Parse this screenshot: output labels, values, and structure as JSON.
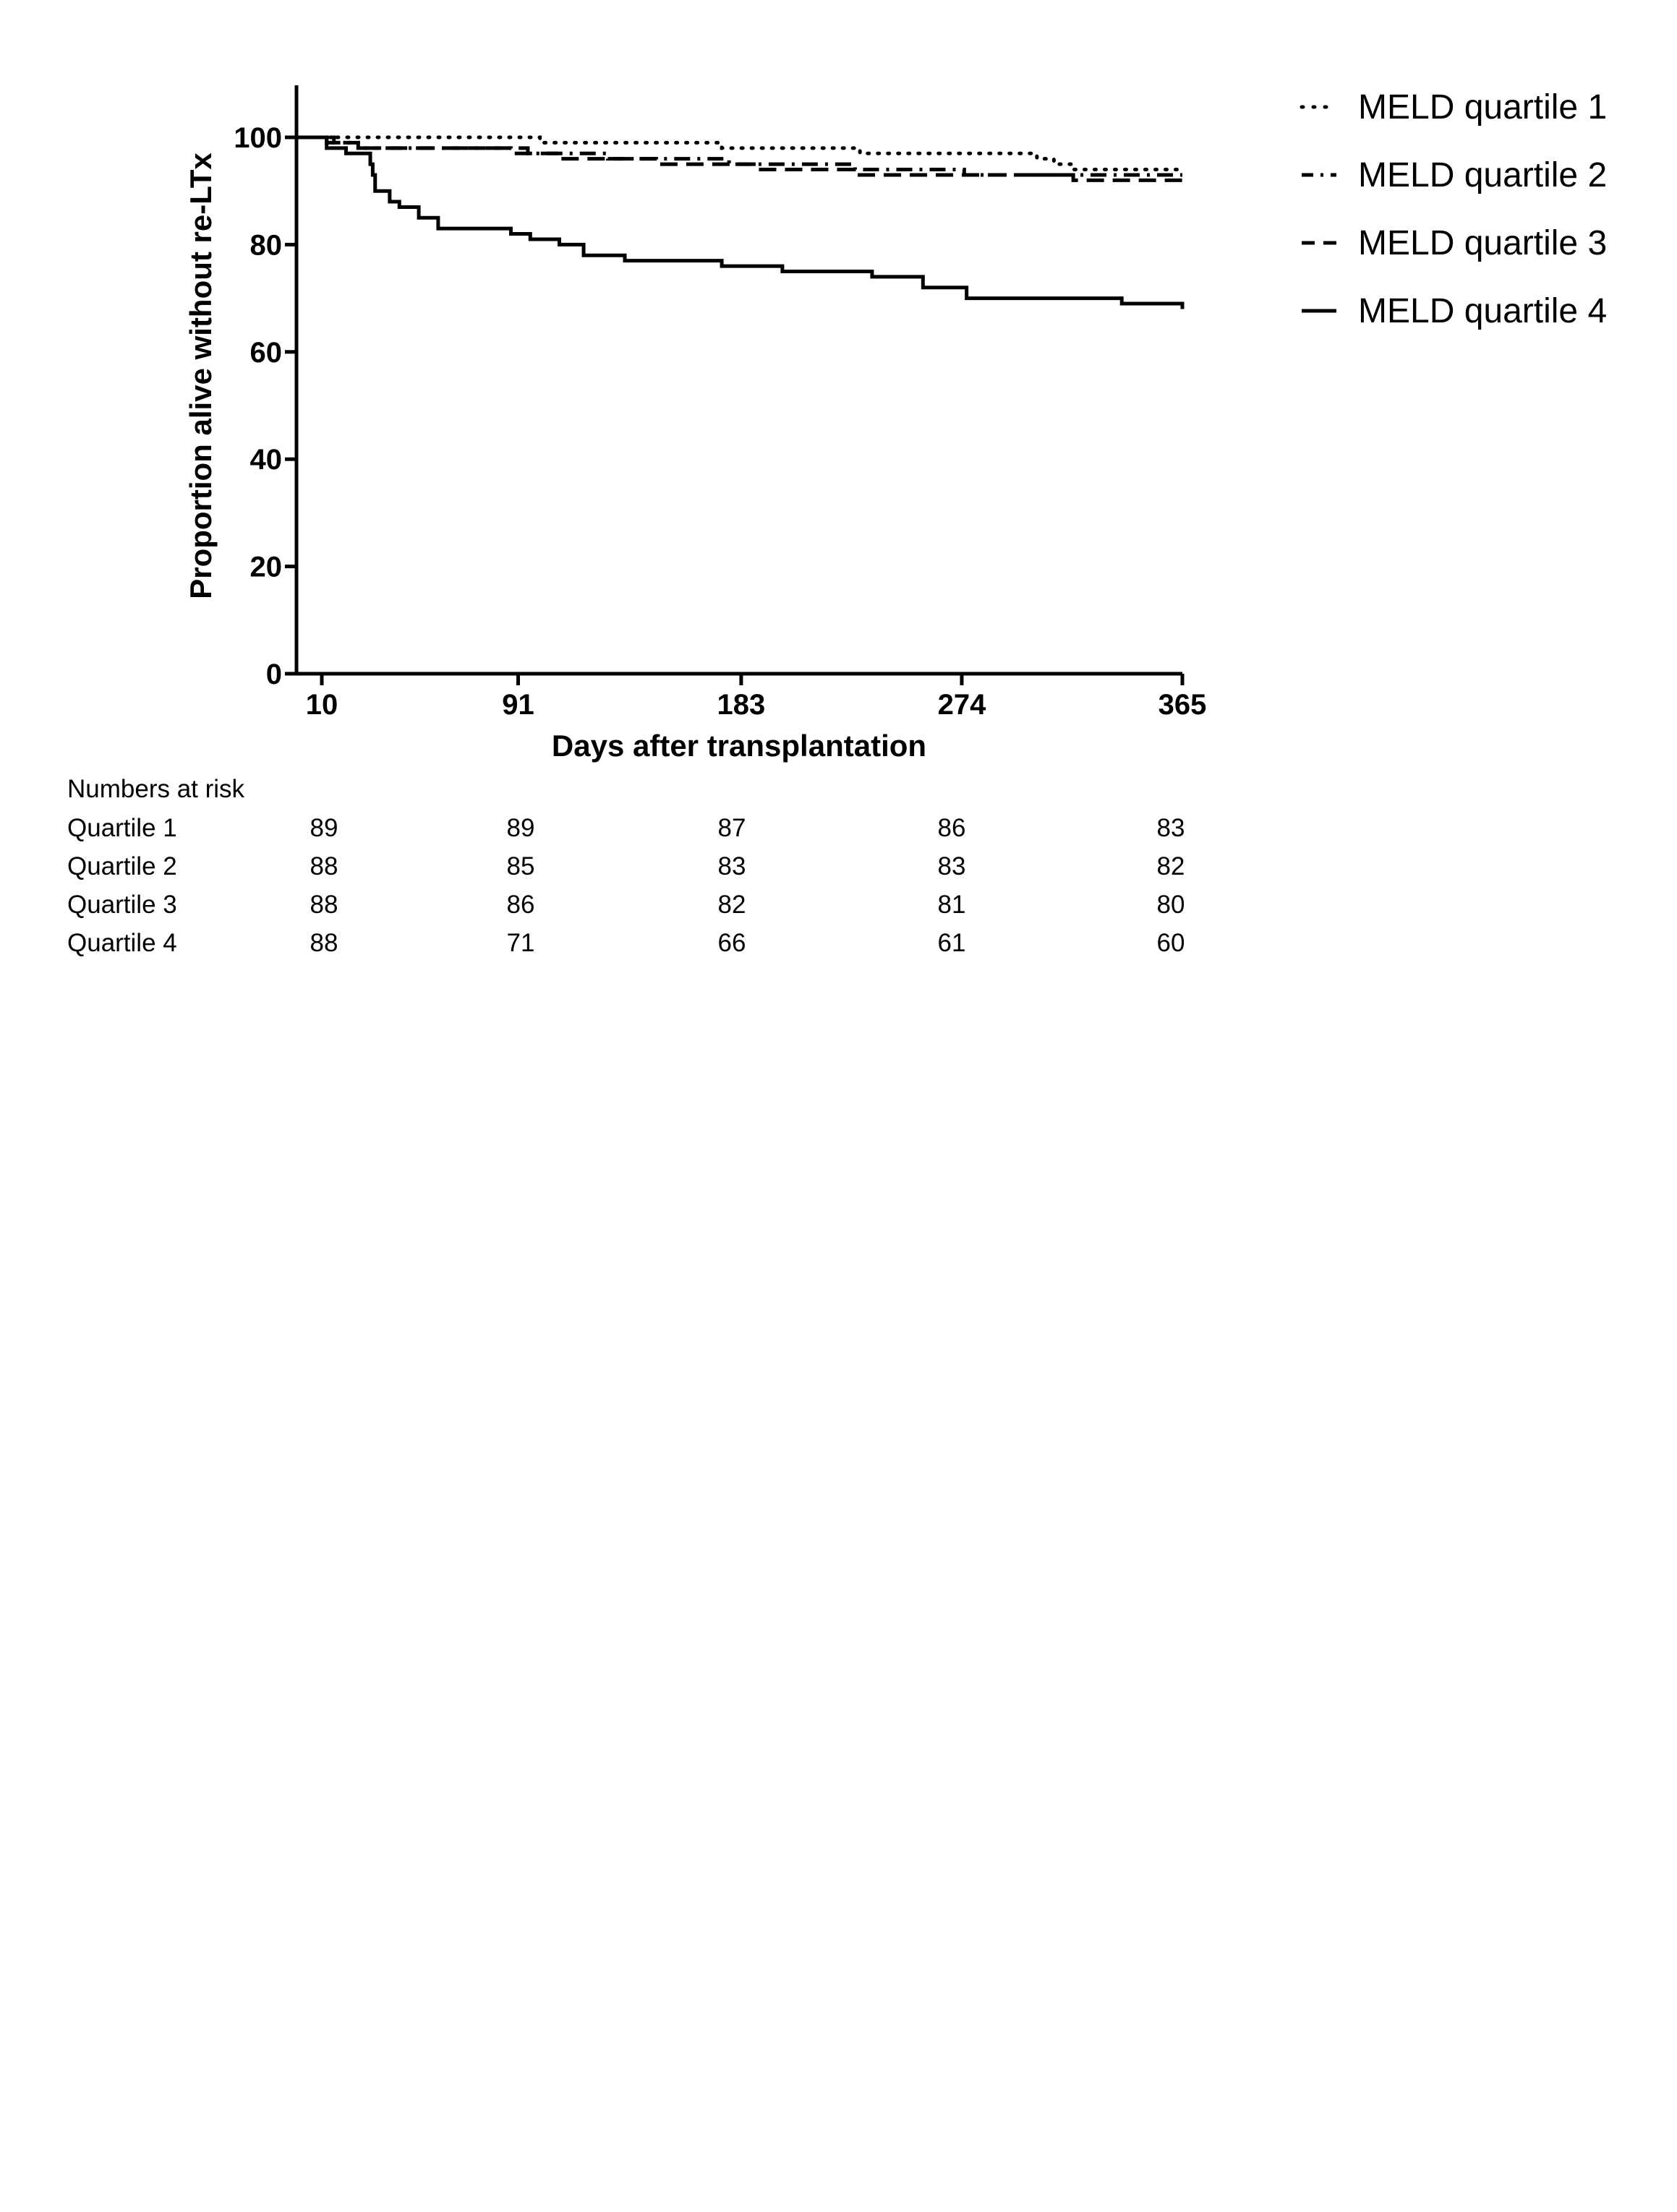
{
  "chart_data": {
    "type": "line",
    "xlabel": "Days after transplantation",
    "ylabel": "Proportion alive without re-LTx",
    "xlim": [
      0,
      365
    ],
    "ylim": [
      0,
      110
    ],
    "x_ticks": [
      10,
      91,
      183,
      274,
      365
    ],
    "y_ticks": [
      0,
      20,
      40,
      60,
      80,
      100
    ],
    "grid": false,
    "legend_position": "top-right",
    "series": [
      {
        "name": "MELD quartile 1",
        "line_style": "dotted",
        "color": "#000000",
        "x": [
          0,
          100,
          175,
          232,
          305,
          312,
          320,
          365
        ],
        "y": [
          100,
          99,
          98,
          97,
          96,
          95,
          94,
          94
        ]
      },
      {
        "name": "MELD quartile 2",
        "line_style": "dash-dot",
        "color": "#000000",
        "x": [
          0,
          15,
          25,
          95,
          128,
          178,
          230,
          255,
          275,
          315,
          365
        ],
        "y": [
          100,
          99,
          98,
          97,
          96,
          95,
          94,
          94,
          93,
          93,
          93
        ]
      },
      {
        "name": "MELD quartile 3",
        "line_style": "dashed",
        "color": "#000000",
        "x": [
          0,
          12,
          25,
          35,
          88,
          108,
          148,
          190,
          230,
          320,
          365
        ],
        "y": [
          100,
          99,
          98,
          98,
          97,
          96,
          95,
          94,
          93,
          92,
          91
        ]
      },
      {
        "name": "MELD quartile 4",
        "line_style": "solid",
        "color": "#000000",
        "x": [
          0,
          12,
          20,
          30,
          31,
          32,
          38,
          42,
          50,
          58,
          88,
          96,
          108,
          118,
          135,
          175,
          200,
          237,
          258,
          276,
          340,
          365
        ],
        "y": [
          100,
          98,
          97,
          95,
          93,
          90,
          88,
          87,
          85,
          83,
          82,
          81,
          80,
          78,
          77,
          76,
          75,
          74,
          72,
          70,
          69,
          68
        ]
      }
    ]
  },
  "risk_table": {
    "title": "Numbers at risk",
    "rows": [
      {
        "label": "Quartile 1",
        "values": [
          "89",
          "89",
          "87",
          "86",
          "83"
        ]
      },
      {
        "label": "Quartile 2",
        "values": [
          "88",
          "85",
          "83",
          "83",
          "82"
        ]
      },
      {
        "label": "Quartile 3",
        "values": [
          "88",
          "86",
          "82",
          "81",
          "80"
        ]
      },
      {
        "label": "Quartile 4",
        "values": [
          "88",
          "71",
          "66",
          "61",
          "60"
        ]
      }
    ]
  }
}
